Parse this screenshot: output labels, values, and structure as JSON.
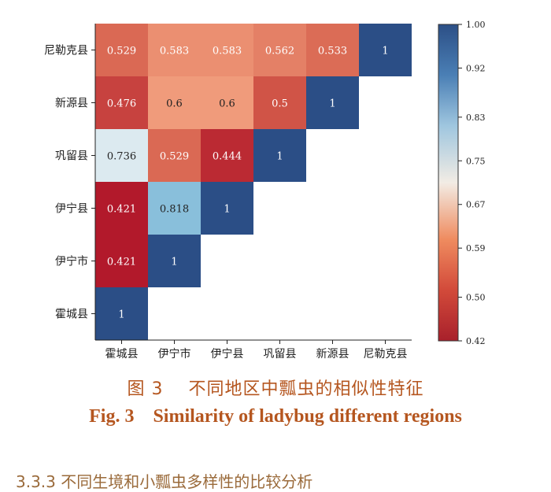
{
  "chart_data": {
    "type": "heatmap",
    "x_categories": [
      "霍城县",
      "伊宁市",
      "伊宁县",
      "巩留县",
      "新源县",
      "尼勒克县"
    ],
    "y_categories": [
      "尼勒克县",
      "新源县",
      "巩留县",
      "伊宁县",
      "伊宁市",
      "霍城县"
    ],
    "matrix": [
      [
        "0.529",
        "0.583",
        "0.583",
        "0.562",
        "0.533",
        "1"
      ],
      [
        "0.476",
        "0.6",
        "0.6",
        "0.5",
        "1"
      ],
      [
        "0.736",
        "0.529",
        "0.444",
        "1"
      ],
      [
        "0.421",
        "0.818",
        "1"
      ],
      [
        "0.421",
        "1"
      ],
      [
        "1"
      ]
    ],
    "colorbar": {
      "min": 0.42,
      "max": 1.0,
      "ticks": [
        "1.00",
        "0.92",
        "0.83",
        "0.75",
        "0.67",
        "0.59",
        "0.50",
        "0.42"
      ],
      "tick_values": [
        1.0,
        0.92,
        0.83,
        0.75,
        0.67,
        0.59,
        0.5,
        0.42
      ],
      "colormap": "RdBu",
      "color_stops": [
        "#b2182b",
        "#d6604d",
        "#f4a582",
        "#f7f7f7",
        "#92c5de",
        "#4393c3",
        "#2b4e86"
      ]
    },
    "grid": false,
    "legend": "colorbar-right"
  },
  "caption": {
    "cn_figure_no": "图 3",
    "cn_title": "不同地区中瓢虫的相似性特征",
    "en_figure_no": "Fig. 3",
    "en_title": "Similarity of ladybug different regions",
    "color": "#b5561f"
  },
  "next_section_fragment": "3.3.3 不同生境和小瓢虫多样性的比较分析"
}
